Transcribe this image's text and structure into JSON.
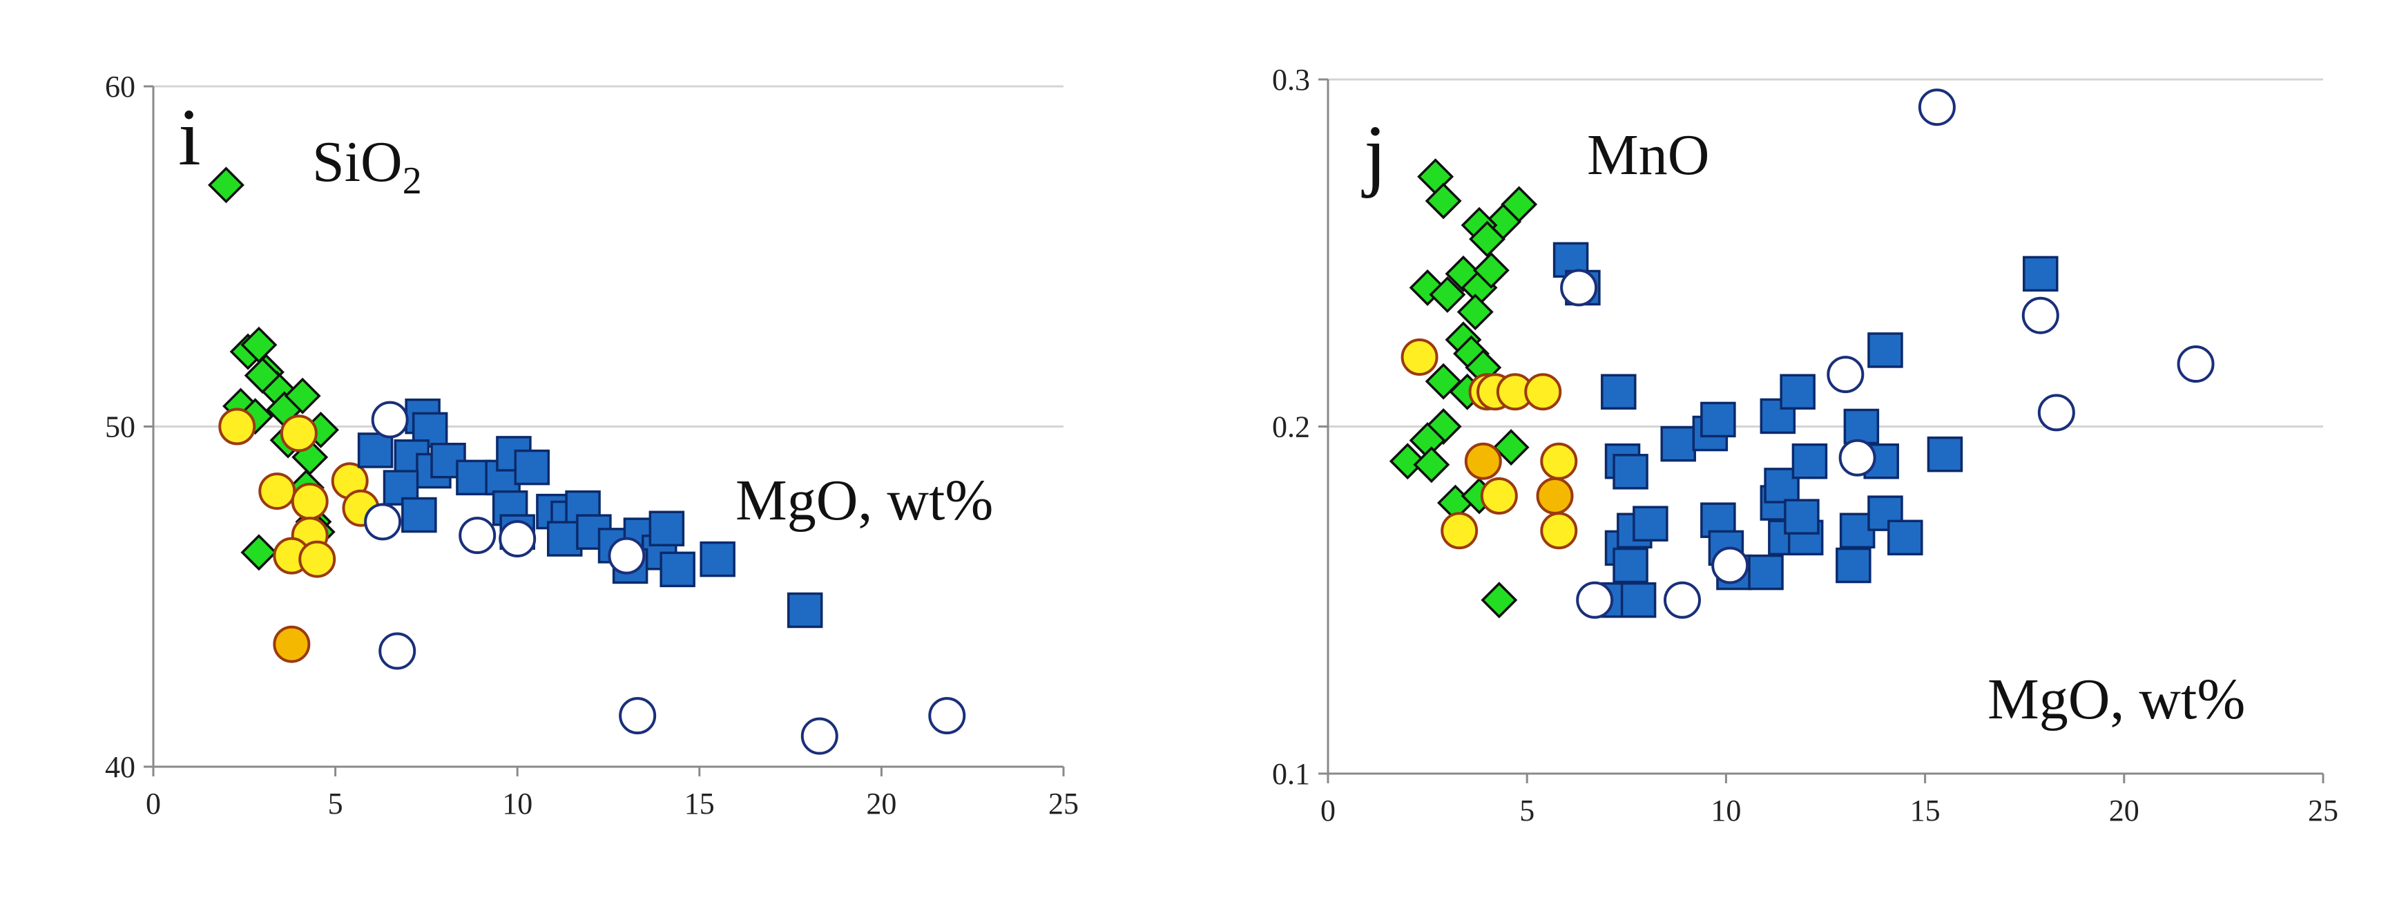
{
  "chart_data": [
    {
      "type": "scatter",
      "panel_letter": "i",
      "oxide_main": "SiO",
      "oxide_sub": "2",
      "xlabel": "MgO, wt%",
      "xlim": [
        0,
        25
      ],
      "ylim": [
        40,
        60
      ],
      "xticks": [
        "0",
        "5",
        "10",
        "15",
        "20",
        "25"
      ],
      "yticks": [
        "40",
        "50",
        "60"
      ],
      "gridlines_y": [
        50,
        60
      ],
      "series": [
        {
          "name": "green-diamonds",
          "marker": "diamond",
          "color": "#22dd22",
          "points": [
            [
              2.0,
              57.1
            ],
            [
              2.6,
              52.2
            ],
            [
              2.9,
              52.4
            ],
            [
              3.1,
              51.6
            ],
            [
              3.4,
              51.1
            ],
            [
              3.0,
              51.5
            ],
            [
              2.4,
              50.6
            ],
            [
              2.8,
              50.3
            ],
            [
              3.6,
              50.5
            ],
            [
              4.1,
              50.9
            ],
            [
              3.9,
              49.8
            ],
            [
              4.6,
              49.9
            ],
            [
              4.3,
              49.1
            ],
            [
              3.7,
              49.6
            ],
            [
              4.2,
              48.2
            ],
            [
              4.4,
              47.2
            ],
            [
              4.5,
              46.9
            ],
            [
              2.9,
              46.3
            ]
          ]
        },
        {
          "name": "yellow-circles",
          "marker": "circle",
          "color": "#ffee22",
          "points": [
            [
              2.3,
              50.0
            ],
            [
              4.0,
              49.8
            ],
            [
              3.4,
              48.1
            ],
            [
              4.3,
              47.8
            ],
            [
              5.4,
              48.4
            ],
            [
              5.7,
              47.6
            ],
            [
              4.3,
              46.8
            ],
            [
              3.8,
              46.2
            ],
            [
              4.5,
              46.1
            ]
          ]
        },
        {
          "name": "orange-circles",
          "marker": "circle",
          "color": "#f5b800",
          "points": [
            [
              3.8,
              43.6
            ]
          ]
        },
        {
          "name": "blue-squares",
          "marker": "square",
          "color": "#1f6bc4",
          "points": [
            [
              6.1,
              49.3
            ],
            [
              7.4,
              50.3
            ],
            [
              7.6,
              49.9
            ],
            [
              7.1,
              49.1
            ],
            [
              7.7,
              48.7
            ],
            [
              8.1,
              49.0
            ],
            [
              8.8,
              48.5
            ],
            [
              9.6,
              48.5
            ],
            [
              9.9,
              49.2
            ],
            [
              10.4,
              48.8
            ],
            [
              6.8,
              48.2
            ],
            [
              7.3,
              47.4
            ],
            [
              9.8,
              47.6
            ],
            [
              10.0,
              46.9
            ],
            [
              11.0,
              47.5
            ],
            [
              11.4,
              47.3
            ],
            [
              11.8,
              47.6
            ],
            [
              11.3,
              46.7
            ],
            [
              12.1,
              46.9
            ],
            [
              12.7,
              46.5
            ],
            [
              13.4,
              46.8
            ],
            [
              13.9,
              46.3
            ],
            [
              14.1,
              47.0
            ],
            [
              14.4,
              45.8
            ],
            [
              15.5,
              46.1
            ],
            [
              17.9,
              44.6
            ],
            [
              13.1,
              45.9
            ]
          ]
        },
        {
          "name": "white-circles",
          "marker": "circle",
          "color": "#ffffff",
          "points": [
            [
              6.5,
              50.2
            ],
            [
              6.3,
              47.2
            ],
            [
              8.9,
              46.8
            ],
            [
              10.0,
              46.7
            ],
            [
              13.0,
              46.2
            ],
            [
              6.7,
              43.4
            ],
            [
              13.3,
              41.5
            ],
            [
              18.3,
              40.9
            ],
            [
              21.8,
              41.5
            ]
          ]
        }
      ]
    },
    {
      "type": "scatter",
      "panel_letter": "j",
      "oxide_main": "MnO",
      "xlabel": "MgO, wt%",
      "xlim": [
        0,
        25
      ],
      "ylim": [
        0.1,
        0.3
      ],
      "xticks": [
        "0",
        "5",
        "10",
        "15",
        "20",
        "25"
      ],
      "yticks": [
        "0.1",
        "0.2",
        "0.3"
      ],
      "gridlines_y": [
        0.2,
        0.3
      ],
      "series": [
        {
          "name": "green-diamonds",
          "marker": "diamond",
          "color": "#22dd22",
          "points": [
            [
              2.7,
              0.272
            ],
            [
              2.9,
              0.265
            ],
            [
              4.8,
              0.264
            ],
            [
              4.4,
              0.259
            ],
            [
              3.8,
              0.258
            ],
            [
              4.0,
              0.254
            ],
            [
              2.5,
              0.24
            ],
            [
              3.0,
              0.238
            ],
            [
              3.4,
              0.244
            ],
            [
              3.8,
              0.24
            ],
            [
              4.1,
              0.245
            ],
            [
              3.7,
              0.233
            ],
            [
              3.4,
              0.225
            ],
            [
              3.6,
              0.221
            ],
            [
              3.9,
              0.217
            ],
            [
              2.9,
              0.213
            ],
            [
              3.5,
              0.21
            ],
            [
              2.9,
              0.2
            ],
            [
              2.5,
              0.196
            ],
            [
              2.0,
              0.19
            ],
            [
              2.6,
              0.189
            ],
            [
              4.6,
              0.194
            ],
            [
              3.2,
              0.178
            ],
            [
              3.8,
              0.18
            ],
            [
              4.3,
              0.15
            ]
          ]
        },
        {
          "name": "yellow-circles",
          "marker": "circle",
          "color": "#ffee22",
          "points": [
            [
              2.3,
              0.22
            ],
            [
              4.0,
              0.21
            ],
            [
              4.2,
              0.21
            ],
            [
              4.7,
              0.21
            ],
            [
              5.4,
              0.21
            ],
            [
              5.8,
              0.19
            ],
            [
              4.3,
              0.18
            ],
            [
              3.3,
              0.17
            ],
            [
              5.8,
              0.17
            ]
          ]
        },
        {
          "name": "orange-circles",
          "marker": "circle",
          "color": "#f5b800",
          "points": [
            [
              3.9,
              0.19
            ],
            [
              5.7,
              0.18
            ]
          ]
        },
        {
          "name": "blue-squares",
          "marker": "square",
          "color": "#1f6bc4",
          "points": [
            [
              6.1,
              0.248
            ],
            [
              6.4,
              0.24
            ],
            [
              7.3,
              0.21
            ],
            [
              7.4,
              0.19
            ],
            [
              7.6,
              0.187
            ],
            [
              7.4,
              0.165
            ],
            [
              7.7,
              0.17
            ],
            [
              7.6,
              0.16
            ],
            [
              7.2,
              0.15
            ],
            [
              7.8,
              0.15
            ],
            [
              8.1,
              0.172
            ],
            [
              8.8,
              0.195
            ],
            [
              9.6,
              0.198
            ],
            [
              9.8,
              0.202
            ],
            [
              9.8,
              0.173
            ],
            [
              10.0,
              0.165
            ],
            [
              10.2,
              0.158
            ],
            [
              11.0,
              0.158
            ],
            [
              11.3,
              0.178
            ],
            [
              11.4,
              0.183
            ],
            [
              11.3,
              0.203
            ],
            [
              11.8,
              0.21
            ],
            [
              11.5,
              0.168
            ],
            [
              12.0,
              0.168
            ],
            [
              11.9,
              0.174
            ],
            [
              12.1,
              0.19
            ],
            [
              13.4,
              0.2
            ],
            [
              13.3,
              0.17
            ],
            [
              13.2,
              0.16
            ],
            [
              13.9,
              0.19
            ],
            [
              14.0,
              0.222
            ],
            [
              14.0,
              0.175
            ],
            [
              14.5,
              0.168
            ],
            [
              15.5,
              0.192
            ],
            [
              17.9,
              0.244
            ]
          ]
        },
        {
          "name": "white-circles",
          "marker": "circle",
          "color": "#ffffff",
          "points": [
            [
              15.3,
              0.292
            ],
            [
              6.3,
              0.24
            ],
            [
              17.9,
              0.232
            ],
            [
              21.8,
              0.218
            ],
            [
              13.0,
              0.215
            ],
            [
              18.3,
              0.204
            ],
            [
              13.3,
              0.191
            ],
            [
              10.1,
              0.16
            ],
            [
              6.7,
              0.15
            ],
            [
              8.9,
              0.15
            ]
          ]
        }
      ]
    }
  ]
}
